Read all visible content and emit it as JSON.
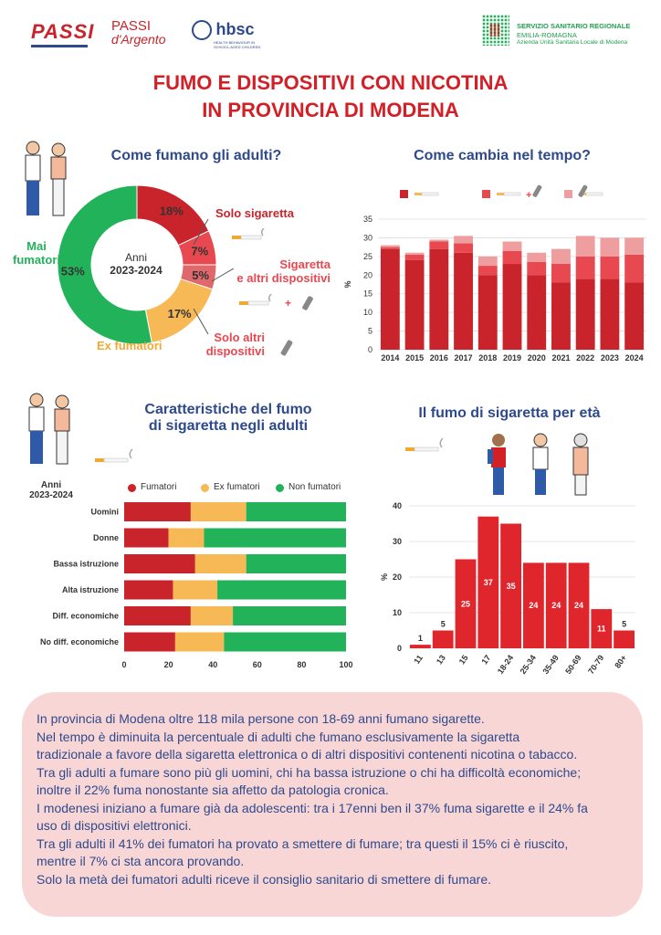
{
  "header": {
    "logo_passi": "PASSI",
    "logo_passi_argento_1": "PASSI",
    "logo_passi_argento_2": "d'Argento",
    "logo_hbsc": "hbsc",
    "logo_hbsc_sub": "HEALTH BEHAVIOUR IN SCHOOL-AGED CHILDREN",
    "region_line1": "SERVIZIO SANITARIO REGIONALE",
    "region_line2": "EMILIA-ROMAGNA",
    "region_line3": "Azienda Unità Sanitaria Locale di Modena"
  },
  "title_line1": "FUMO E DISPOSITIVI CON NICOTINA",
  "title_line2": "IN PROVINCIA DI MODENA",
  "colors": {
    "dark_red": "#c9242b",
    "red": "#e8484f",
    "pink": "#ee9e9e",
    "orange": "#f7b955",
    "green": "#22b35a",
    "blue": "#2e4a8c"
  },
  "donut": {
    "section_title": "Come fumano gli adulti?",
    "center_line1": "Anni",
    "center_line2": "2023-2024",
    "label_solo_sigaretta": "Solo sigaretta",
    "label_sigaretta_altri_1": "Sigaretta",
    "label_sigaretta_altri_2": "e altri dispositivi",
    "label_solo_altri_1": "Solo altri",
    "label_solo_altri_2": "dispositivi",
    "label_ex_fumatori": "Ex fumatori",
    "label_mai_1": "Mai",
    "label_mai_2": "fumatori",
    "pct_solo": "18%",
    "pct_sig_altri": "7%",
    "pct_solo_altri": "5%",
    "pct_ex": "17%",
    "pct_mai": "53%"
  },
  "bar_legend_plus": "+",
  "bar_time": {
    "section_title": "Come cambia nel tempo?",
    "ylabel": "%"
  },
  "hbar": {
    "section_title_1": "Caratteristiche del fumo",
    "section_title_2": "di sigaretta negli adulti",
    "period_1": "Anni",
    "period_2": "2023-2024",
    "legend_fumatori": "Fumatori",
    "legend_ex": "Ex fumatori",
    "legend_non": "Non fumatori"
  },
  "age": {
    "section_title": "Il fumo di sigaretta per età",
    "ylabel": "%"
  },
  "summary_lines": [
    "In provincia di Modena oltre 118 mila persone con 18-69 anni fumano sigarette.",
    "Nel tempo è diminuita la percentuale di adulti che fumano esclusivamente la sigaretta",
    "tradizionale a favore della sigaretta elettronica o di altri dispositivi contenenti nicotina o tabacco.",
    "Tra gli adulti a fumare sono più gli uomini, chi ha bassa istruzione o chi ha difficoltà economiche;",
    "inoltre il 22% fuma nonostante sia affetto da patologia cronica.",
    "I modenesi iniziano a fumare già da adolescenti: tra i 17enni ben il 37% fuma sigarette e il 24% fa",
    "uso di dispositivi elettronici.",
    "Tra gli adulti il 41% dei fumatori ha provato a smettere di fumare; tra questi il 15% ci è riuscito,",
    "mentre il 7% ci sta ancora provando.",
    "Solo la metà dei fumatori adulti riceve il consiglio sanitario di smettere di fumare."
  ],
  "chart_data": [
    {
      "type": "pie",
      "title": "Come fumano gli adulti?",
      "subtitle": "Anni 2023-2024",
      "categories": [
        "Solo sigaretta",
        "Sigaretta e altri dispositivi",
        "Solo altri dispositivi",
        "Ex fumatori",
        "Mai fumatori"
      ],
      "values": [
        18,
        7,
        5,
        17,
        53
      ]
    },
    {
      "type": "bar",
      "stacked": true,
      "title": "Come cambia nel tempo?",
      "ylabel": "%",
      "ylim": [
        0,
        35
      ],
      "yticks": [
        0,
        5,
        10,
        15,
        20,
        25,
        30,
        35
      ],
      "grid": true,
      "categories": [
        "2014",
        "2015",
        "2016",
        "2017",
        "2018",
        "2019",
        "2020",
        "2021",
        "2022",
        "2023",
        "2024"
      ],
      "series": [
        {
          "values": [
            27,
            24,
            27,
            26,
            20,
            23,
            20,
            18,
            19,
            19,
            18
          ]
        },
        {
          "values": [
            0.5,
            1.5,
            2,
            2.5,
            2.5,
            3.5,
            3.5,
            5,
            6,
            6,
            7.5
          ]
        },
        {
          "values": [
            0.5,
            0.5,
            0.5,
            2,
            2.5,
            2.5,
            2.5,
            4,
            5.5,
            5,
            4.5
          ]
        }
      ]
    },
    {
      "type": "bar",
      "orientation": "horizontal",
      "stacked": true,
      "title": "Caratteristiche del fumo di sigaretta negli adulti",
      "subtitle": "Anni 2023-2024",
      "xlim": [
        0,
        100
      ],
      "xticks": [
        0,
        20,
        40,
        60,
        80,
        100
      ],
      "legend": "top",
      "categories": [
        "Uomini",
        "Donne",
        "Bassa istruzione",
        "Alta istruzione",
        "Diff. economiche",
        "No diff. economiche"
      ],
      "series": [
        {
          "name": "Fumatori",
          "values": [
            30,
            20,
            32,
            22,
            30,
            23
          ]
        },
        {
          "name": "Ex fumatori",
          "values": [
            25,
            16,
            23,
            20,
            19,
            22
          ]
        },
        {
          "name": "Non fumatori",
          "values": [
            45,
            64,
            45,
            58,
            51,
            55
          ]
        }
      ]
    },
    {
      "type": "bar",
      "title": "Il fumo di sigaretta per età",
      "ylabel": "%",
      "ylim": [
        0,
        40
      ],
      "yticks": [
        0,
        10,
        20,
        30,
        40
      ],
      "grid": true,
      "categories": [
        "11",
        "13",
        "15",
        "17",
        "18-24",
        "25-34",
        "35-49",
        "50-69",
        "70-79",
        "80+"
      ],
      "values": [
        1,
        5,
        25,
        37,
        35,
        24,
        24,
        24,
        11,
        5
      ]
    }
  ]
}
